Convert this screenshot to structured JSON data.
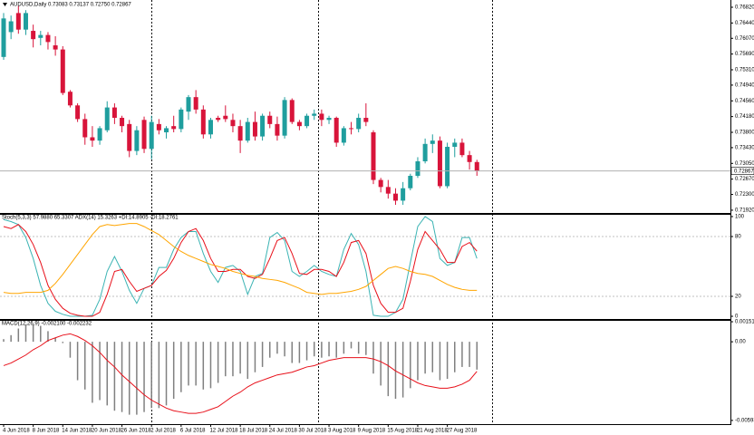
{
  "chart_data": [
    {
      "type": "candlestick",
      "title": "AUDUSD,Daily  0.73083 0.73137 0.72750 0.72867",
      "categories": [
        "4 Jun 2018",
        null,
        null,
        null,
        "8 Jun 2018",
        null,
        null,
        null,
        "14 Jun 2018",
        null,
        null,
        null,
        "20 Jun 2018",
        null,
        null,
        null,
        "26 Jun 2018",
        null,
        null,
        null,
        "2 Jul 2018",
        null,
        null,
        null,
        "6 Jul 2018",
        null,
        null,
        null,
        "12 Jul 2018",
        null,
        null,
        null,
        "18 Jul 2018",
        null,
        null,
        null,
        "24 Jul 2018",
        null,
        null,
        null,
        "30 Jul 2018",
        null,
        null,
        null,
        "3 Aug 2018",
        null,
        null,
        null,
        "9 Aug 2018",
        null,
        null,
        null,
        "15 Aug 2018",
        null,
        null,
        null,
        "21 Aug 2018",
        null,
        null,
        null,
        "27 Aug 2018",
        null,
        null,
        null,
        null
      ],
      "open": [
        0.7562,
        0.7622,
        0.7668,
        0.7628,
        0.7625,
        0.7608,
        0.7615,
        0.759,
        0.758,
        0.7478,
        0.7445,
        0.7412,
        0.7368,
        0.736,
        0.7385,
        0.744,
        0.7415,
        0.74,
        0.7335,
        0.741,
        0.734,
        0.74,
        0.738,
        0.7395,
        0.7388,
        0.743,
        0.7465,
        0.7435,
        0.7375,
        0.7415,
        0.742,
        0.741,
        0.7395,
        0.736,
        0.7405,
        0.737,
        0.742,
        0.74,
        0.7372,
        0.7458,
        0.7405,
        0.7395,
        0.742,
        0.7425,
        0.741,
        0.7415,
        0.7355,
        0.739,
        0.7388,
        0.7415,
        0.738,
        0.7265,
        0.7248,
        0.7232,
        0.7215,
        0.7245,
        0.7275,
        0.731,
        0.7352,
        0.736,
        0.725,
        0.7345,
        0.7355,
        0.7325,
        0.73083
      ],
      "high": [
        0.7668,
        0.7662,
        0.7685,
        0.7675,
        0.764,
        0.7625,
        0.7622,
        0.7612,
        0.7588,
        0.7482,
        0.745,
        0.7425,
        0.7395,
        0.7395,
        0.7455,
        0.745,
        0.742,
        0.741,
        0.7395,
        0.7418,
        0.742,
        0.7412,
        0.7395,
        0.742,
        0.744,
        0.747,
        0.7482,
        0.7445,
        0.7415,
        0.742,
        0.7445,
        0.7425,
        0.741,
        0.7415,
        0.743,
        0.7425,
        0.743,
        0.7418,
        0.7465,
        0.7462,
        0.741,
        0.7425,
        0.7435,
        0.7435,
        0.742,
        0.7418,
        0.7395,
        0.7405,
        0.7425,
        0.745,
        0.7385,
        0.727,
        0.7265,
        0.7245,
        0.726,
        0.728,
        0.732,
        0.7365,
        0.7375,
        0.737,
        0.7355,
        0.7365,
        0.7365,
        0.7335,
        0.73137
      ],
      "low": [
        0.7555,
        0.7605,
        0.7618,
        0.7615,
        0.7585,
        0.759,
        0.758,
        0.7565,
        0.747,
        0.744,
        0.7405,
        0.735,
        0.7345,
        0.735,
        0.738,
        0.74,
        0.738,
        0.732,
        0.7325,
        0.733,
        0.7315,
        0.7375,
        0.7365,
        0.738,
        0.738,
        0.741,
        0.7425,
        0.7365,
        0.7365,
        0.7405,
        0.7405,
        0.738,
        0.733,
        0.7355,
        0.736,
        0.736,
        0.739,
        0.736,
        0.7365,
        0.74,
        0.7385,
        0.739,
        0.741,
        0.7395,
        0.74,
        0.7345,
        0.7348,
        0.7375,
        0.738,
        0.7395,
        0.7255,
        0.7235,
        0.722,
        0.7205,
        0.7205,
        0.724,
        0.727,
        0.7305,
        0.733,
        0.7245,
        0.7245,
        0.732,
        0.732,
        0.729,
        0.7275
      ],
      "close": [
        0.7655,
        0.7648,
        0.7628,
        0.7668,
        0.7605,
        0.7615,
        0.7598,
        0.758,
        0.7475,
        0.7445,
        0.7412,
        0.7368,
        0.736,
        0.739,
        0.744,
        0.7415,
        0.7395,
        0.7335,
        0.7385,
        0.734,
        0.7405,
        0.7385,
        0.739,
        0.7388,
        0.7435,
        0.7465,
        0.7435,
        0.7375,
        0.741,
        0.741,
        0.7412,
        0.7395,
        0.736,
        0.7405,
        0.737,
        0.742,
        0.74,
        0.7372,
        0.7458,
        0.7405,
        0.7395,
        0.742,
        0.7425,
        0.741,
        0.7415,
        0.7355,
        0.739,
        0.7388,
        0.7415,
        0.7405,
        0.7265,
        0.7248,
        0.7232,
        0.7215,
        0.7245,
        0.7275,
        0.731,
        0.7352,
        0.736,
        0.725,
        0.7345,
        0.7355,
        0.7325,
        0.73083,
        0.72867
      ],
      "up_color": "#1f9e9e",
      "down_color": "#d8143a",
      "ylim": [
        0.71853,
        0.76973
      ],
      "yticks": [
        {
          "value": 0.7682,
          "label": "0.76820"
        },
        {
          "value": 0.7644,
          "label": "0.76440"
        },
        {
          "value": 0.7607,
          "label": "0.76070"
        },
        {
          "value": 0.7569,
          "label": "0.75690"
        },
        {
          "value": 0.7531,
          "label": "0.75310"
        },
        {
          "value": 0.7494,
          "label": "0.74940"
        },
        {
          "value": 0.7456,
          "label": "0.74560"
        },
        {
          "value": 0.7418,
          "label": "0.74180"
        },
        {
          "value": 0.738,
          "label": "0.73800"
        },
        {
          "value": 0.7343,
          "label": "0.73430"
        },
        {
          "value": 0.7305,
          "label": "0.73050"
        },
        {
          "value": 0.7267,
          "label": "0.72670"
        },
        {
          "value": 0.723,
          "label": "0.72300"
        },
        {
          "value": 0.7192,
          "label": "0.71920"
        }
      ]
    },
    {
      "type": "line",
      "title": "Stoch(5,3,3) 57.9880 65.3307  ADX(14) 15.3263 +DI:14.8905 -DI:18.2761",
      "series": [
        {
          "color": "#3cb4b4",
          "values": [
            97,
            95,
            92,
            79,
            58,
            31,
            13,
            5,
            2,
            0,
            0,
            0,
            1,
            17,
            45,
            60,
            45,
            26,
            13,
            28,
            31,
            49,
            49,
            67,
            79,
            85,
            85,
            63,
            45,
            34,
            49,
            51,
            45,
            22,
            40,
            43,
            79,
            84,
            76,
            45,
            40,
            45,
            51,
            45,
            42,
            40,
            67,
            83,
            72,
            45,
            1,
            0,
            0,
            4,
            17,
            54,
            90,
            100,
            95,
            58,
            51,
            54,
            79,
            79,
            57.988
          ]
        },
        {
          "color": "#e8101a",
          "values": [
            90,
            88,
            92,
            85,
            72,
            54,
            31,
            17,
            8,
            3,
            1,
            0,
            0,
            4,
            22,
            45,
            47,
            35,
            25,
            28,
            31,
            40,
            46,
            58,
            74,
            85,
            88,
            76,
            58,
            45,
            45,
            47,
            47,
            40,
            38,
            42,
            58,
            76,
            79,
            63,
            43,
            42,
            47,
            47,
            45,
            40,
            54,
            74,
            76,
            63,
            31,
            13,
            4,
            4,
            8,
            35,
            67,
            85,
            76,
            67,
            54,
            54,
            70,
            74,
            65.3307
          ]
        },
        {
          "color": "#ffa500",
          "values": [
            24,
            23,
            23,
            24,
            24,
            24,
            26,
            33,
            42,
            52,
            62,
            72,
            82,
            90,
            92,
            91,
            92,
            93,
            93,
            90,
            86,
            82,
            76,
            70,
            65,
            61,
            58,
            55,
            52,
            50,
            48,
            45,
            43,
            41,
            40,
            38,
            37,
            36,
            34,
            31,
            28,
            24,
            23,
            22,
            23,
            23,
            24,
            25,
            27,
            30,
            36,
            42,
            48,
            50,
            48,
            45,
            43,
            42,
            40,
            36,
            32,
            29,
            27,
            26,
            26
          ]
        }
      ],
      "ylim": [
        -1.8,
        101.8
      ],
      "yticks": [
        100,
        80,
        20,
        0
      ],
      "levels": [
        80,
        20
      ]
    },
    {
      "type": "macd",
      "title": "MACD(12,26,9) -0.002100 -0.002232",
      "series": [
        {
          "type": "bar",
          "color": "#808080",
          "values": [
            0.0002,
            0.0005,
            0.001,
            0.0013,
            0.0013,
            0.0012,
            0.0008,
            0.0003,
            -0.0001,
            -0.0012,
            -0.0029,
            -0.0036,
            -0.0046,
            -0.0044,
            -0.0048,
            -0.0052,
            -0.0053,
            -0.0055,
            -0.0055,
            -0.0053,
            -0.005,
            -0.005,
            -0.0048,
            -0.0043,
            -0.0038,
            -0.0033,
            -0.0033,
            -0.0036,
            -0.0035,
            -0.0031,
            -0.0026,
            -0.0026,
            -0.0024,
            -0.0028,
            -0.0023,
            -0.0019,
            -0.0012,
            -0.0009,
            -0.0011,
            -0.0016,
            -0.0016,
            -0.0014,
            -0.0011,
            -0.0012,
            -0.0011,
            -0.0012,
            -0.0009,
            -0.0005,
            -0.0009,
            -0.001,
            -0.0024,
            -0.0033,
            -0.0041,
            -0.0043,
            -0.0042,
            -0.0035,
            -0.0029,
            -0.0024,
            -0.0023,
            -0.0029,
            -0.0028,
            -0.0023,
            -0.0019,
            -0.0019,
            -0.0021
          ]
        },
        {
          "type": "line",
          "color": "#e8101a",
          "values": [
            -0.0018,
            -0.0016,
            -0.0013,
            -0.001,
            -0.0006,
            -0.0003,
            0.0001,
            0.0003,
            0.0005,
            0.0006,
            0.0004,
            0.0001,
            -0.0003,
            -0.0008,
            -0.0014,
            -0.0019,
            -0.0025,
            -0.003,
            -0.0035,
            -0.004,
            -0.0044,
            -0.0047,
            -0.005,
            -0.0052,
            -0.0053,
            -0.0054,
            -0.0054,
            -0.0053,
            -0.0051,
            -0.0049,
            -0.0045,
            -0.0041,
            -0.0038,
            -0.0034,
            -0.0031,
            -0.0029,
            -0.0027,
            -0.0025,
            -0.0024,
            -0.0023,
            -0.0021,
            -0.0019,
            -0.0018,
            -0.0016,
            -0.0014,
            -0.0013,
            -0.0012,
            -0.0012,
            -0.0012,
            -0.0012,
            -0.0013,
            -0.0015,
            -0.0018,
            -0.0022,
            -0.0025,
            -0.0028,
            -0.0031,
            -0.0033,
            -0.0034,
            -0.0035,
            -0.0035,
            -0.0034,
            -0.0032,
            -0.0029,
            -0.002232
          ]
        }
      ],
      "ylim": [
        -0.00621,
        0.00158
      ],
      "yticks": [
        0.00151,
        {
          "value": 0,
          "label": "0.00"
        },
        -0.00593
      ]
    }
  ]
}
